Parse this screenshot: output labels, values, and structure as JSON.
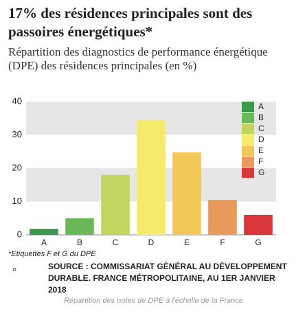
{
  "chart_data": {
    "type": "bar",
    "title": "17% des résidences principales sont des passoires énergétiques*",
    "subtitle": "Répartition des diagnostics de performance énergétique (DPE) des résidences principales (en %)",
    "categories": [
      "A",
      "B",
      "C",
      "D",
      "E",
      "F",
      "G"
    ],
    "values": [
      1.8,
      5,
      18,
      34.5,
      24.8,
      10.5,
      6
    ],
    "colors": [
      "#3a9a4a",
      "#6ab85a",
      "#c3d360",
      "#f4ea6c",
      "#f3c85a",
      "#e99a5a",
      "#d9383a"
    ],
    "ylim": [
      0,
      40
    ],
    "yticks": [
      0,
      10,
      20,
      30,
      40
    ],
    "footnote": "*Etiquettes F et G du DPE",
    "source": "SOURCE : COMMISSARIAT GÉNÉRAL AU DÉVELOPPEMENT DURABLE. FRANCE MÉTROPOLITAINE, AU 1ER JANVIER 2018",
    "mark": "°",
    "caption": "Répartition des notes de DPE à l'échelle de la France"
  }
}
